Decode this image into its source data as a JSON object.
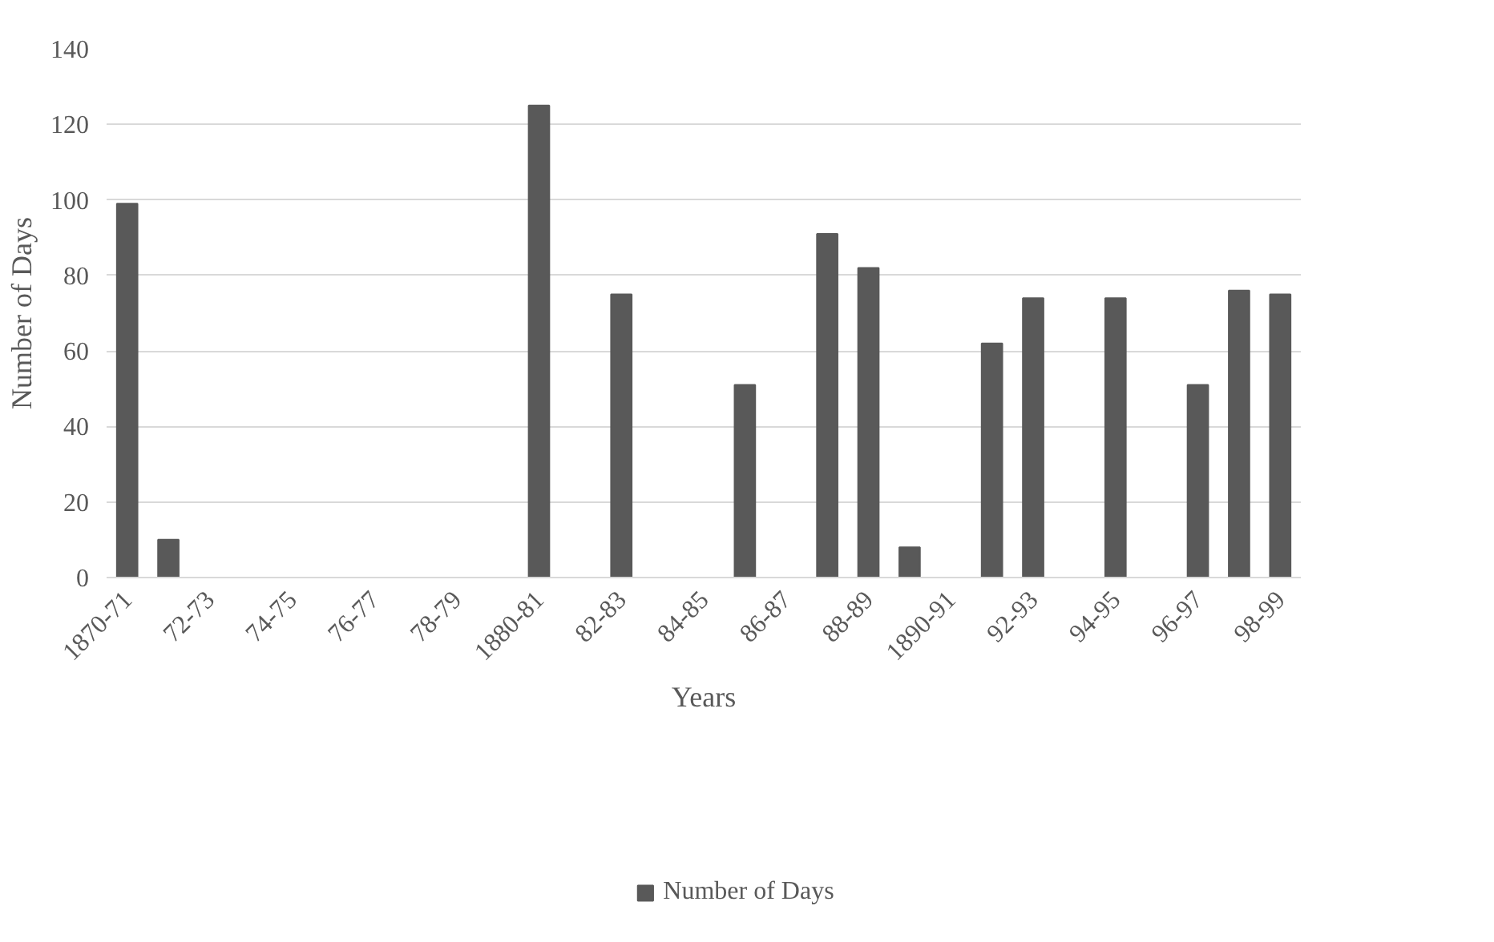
{
  "chart_data": {
    "type": "bar",
    "xlabel": "Years",
    "ylabel": "Number of Days",
    "categories": [
      "1870-71",
      null,
      "72-73",
      null,
      "74-75",
      null,
      "76-77",
      null,
      "78-79",
      null,
      "1880-81",
      null,
      "82-83",
      null,
      "84-85",
      null,
      "86-87",
      null,
      "88-89",
      null,
      "1890-91",
      null,
      "92-93",
      null,
      "94-95",
      null,
      "96-97",
      null,
      "98-99"
    ],
    "series": [
      {
        "name": "Number of Days",
        "color": "#595959",
        "values": [
          99,
          10,
          0,
          0,
          0,
          0,
          0,
          0,
          0,
          0,
          125,
          0,
          75,
          0,
          0,
          51,
          0,
          91,
          82,
          8,
          0,
          62,
          74,
          0,
          74,
          0,
          51,
          76,
          75
        ]
      }
    ],
    "ylim": [
      0,
      140
    ],
    "yticks": [
      0,
      20,
      40,
      60,
      80,
      100,
      120,
      140
    ],
    "grid": "y",
    "legend": "bottom"
  }
}
